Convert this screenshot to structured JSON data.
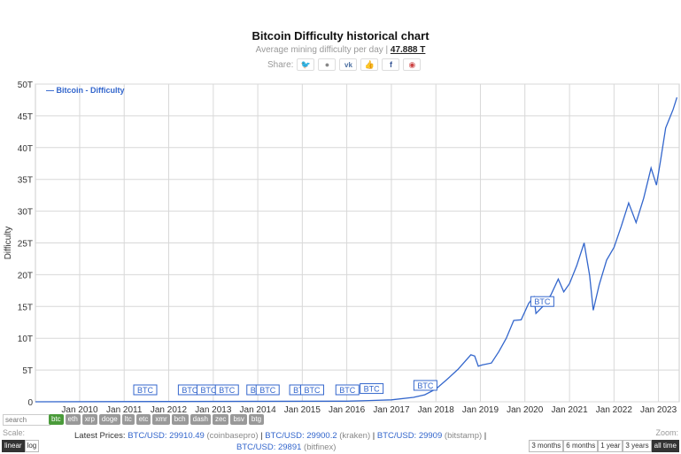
{
  "header": {
    "title": "Bitcoin Difficulty historical chart",
    "subtitle_prefix": "Average mining difficulty per day |",
    "current_value": "47.888 T",
    "share_label": "Share:"
  },
  "share_icons": [
    "twitter-icon",
    "reddit-icon",
    "vk-icon",
    "like-icon",
    "facebook-icon",
    "weibo-icon"
  ],
  "chart_data": {
    "type": "line",
    "title": "",
    "ylabel": "Difficulty",
    "ylim": [
      0,
      50
    ],
    "y_unit": "T",
    "y_ticks": [
      "0",
      "5T",
      "10T",
      "15T",
      "20T",
      "25T",
      "30T",
      "35T",
      "40T",
      "45T",
      "50T"
    ],
    "x_ticks": [
      "Jan 2010",
      "Jan 2011",
      "Jan 2012",
      "Jan 2013",
      "Jan 2014",
      "Jan 2015",
      "Jan 2016",
      "Jan 2017",
      "Jan 2018",
      "Jan 2019",
      "Jan 2020",
      "Jan 2021",
      "Jan 2022",
      "Jan 2023"
    ],
    "grid": true,
    "legend": "top-left",
    "series": [
      {
        "name": "Bitcoin - Difficulty",
        "color": "#3366cc",
        "points": [
          [
            "2009-01-03",
            0
          ],
          [
            "2016-01-01",
            0.1
          ],
          [
            "2016-07-01",
            0.2
          ],
          [
            "2017-01-01",
            0.3
          ],
          [
            "2017-07-01",
            0.7
          ],
          [
            "2017-10-01",
            1.1
          ],
          [
            "2018-01-01",
            2.0
          ],
          [
            "2018-04-01",
            3.5
          ],
          [
            "2018-07-01",
            5.1
          ],
          [
            "2018-10-15",
            7.4
          ],
          [
            "2018-11-15",
            7.2
          ],
          [
            "2018-12-15",
            5.6
          ],
          [
            "2019-01-15",
            5.8
          ],
          [
            "2019-04-01",
            6.1
          ],
          [
            "2019-06-01",
            7.9
          ],
          [
            "2019-08-01",
            10.0
          ],
          [
            "2019-10-01",
            12.8
          ],
          [
            "2019-12-01",
            12.9
          ],
          [
            "2020-02-01",
            15.5
          ],
          [
            "2020-03-15",
            16.5
          ],
          [
            "2020-04-01",
            13.9
          ],
          [
            "2020-06-01",
            15.1
          ],
          [
            "2020-08-01",
            16.8
          ],
          [
            "2020-10-01",
            19.3
          ],
          [
            "2020-11-15",
            17.3
          ],
          [
            "2021-01-01",
            18.6
          ],
          [
            "2021-03-01",
            21.4
          ],
          [
            "2021-05-01",
            25.0
          ],
          [
            "2021-06-15",
            19.9
          ],
          [
            "2021-07-15",
            14.4
          ],
          [
            "2021-09-01",
            18.4
          ],
          [
            "2021-11-01",
            22.3
          ],
          [
            "2022-01-01",
            24.3
          ],
          [
            "2022-03-01",
            27.6
          ],
          [
            "2022-05-01",
            31.3
          ],
          [
            "2022-07-01",
            28.2
          ],
          [
            "2022-09-01",
            32.0
          ],
          [
            "2022-11-01",
            36.8
          ],
          [
            "2022-12-15",
            34.1
          ],
          [
            "2023-01-15",
            37.6
          ],
          [
            "2023-03-01",
            43.1
          ],
          [
            "2023-05-01",
            46.0
          ],
          [
            "2023-06-01",
            47.9
          ]
        ]
      }
    ],
    "annotations": [
      {
        "label": "BTC",
        "date": "2011-06-01"
      },
      {
        "label": "BTC",
        "date": "2012-06-01"
      },
      {
        "label": "BTC",
        "date": "2012-11-01"
      },
      {
        "label": "BTC",
        "date": "2013-04-01"
      },
      {
        "label": "BTC",
        "date": "2013-12-15"
      },
      {
        "label": "BTC",
        "date": "2014-03-01"
      },
      {
        "label": "BTC",
        "date": "2014-12-01"
      },
      {
        "label": "BTC",
        "date": "2015-03-01"
      },
      {
        "label": "BTC",
        "date": "2015-12-15"
      },
      {
        "label": "BTC",
        "date": "2016-07-01"
      },
      {
        "label": "BTC",
        "date": "2017-09-15"
      },
      {
        "label": "BTC",
        "date": "2020-05-01"
      }
    ]
  },
  "controls": {
    "search_placeholder": "search",
    "coins": [
      "btc",
      "eth",
      "xrp",
      "doge",
      "ltc",
      "etc",
      "xmr",
      "bch",
      "dash",
      "zec",
      "bsv",
      "btg"
    ],
    "active_coin": "btc",
    "scale_label": "Scale:",
    "scale_options": [
      "linear",
      "log"
    ],
    "active_scale": "linear",
    "zoom_label": "Zoom:",
    "zoom_options": [
      "3 months",
      "6 months",
      "1 year",
      "3 years",
      "all time"
    ],
    "active_zoom": "all time"
  },
  "prices": {
    "label": "Latest Prices:",
    "items": [
      {
        "pair": "BTC/USD: 29910.49",
        "exchange": "(coinbasepro)"
      },
      {
        "pair": "BTC/USD: 29900.2",
        "exchange": "(kraken)"
      },
      {
        "pair": "BTC/USD: 29909",
        "exchange": "(bitstamp)"
      },
      {
        "pair": "BTC/USD: 29891",
        "exchange": "(bitfinex)"
      }
    ]
  }
}
